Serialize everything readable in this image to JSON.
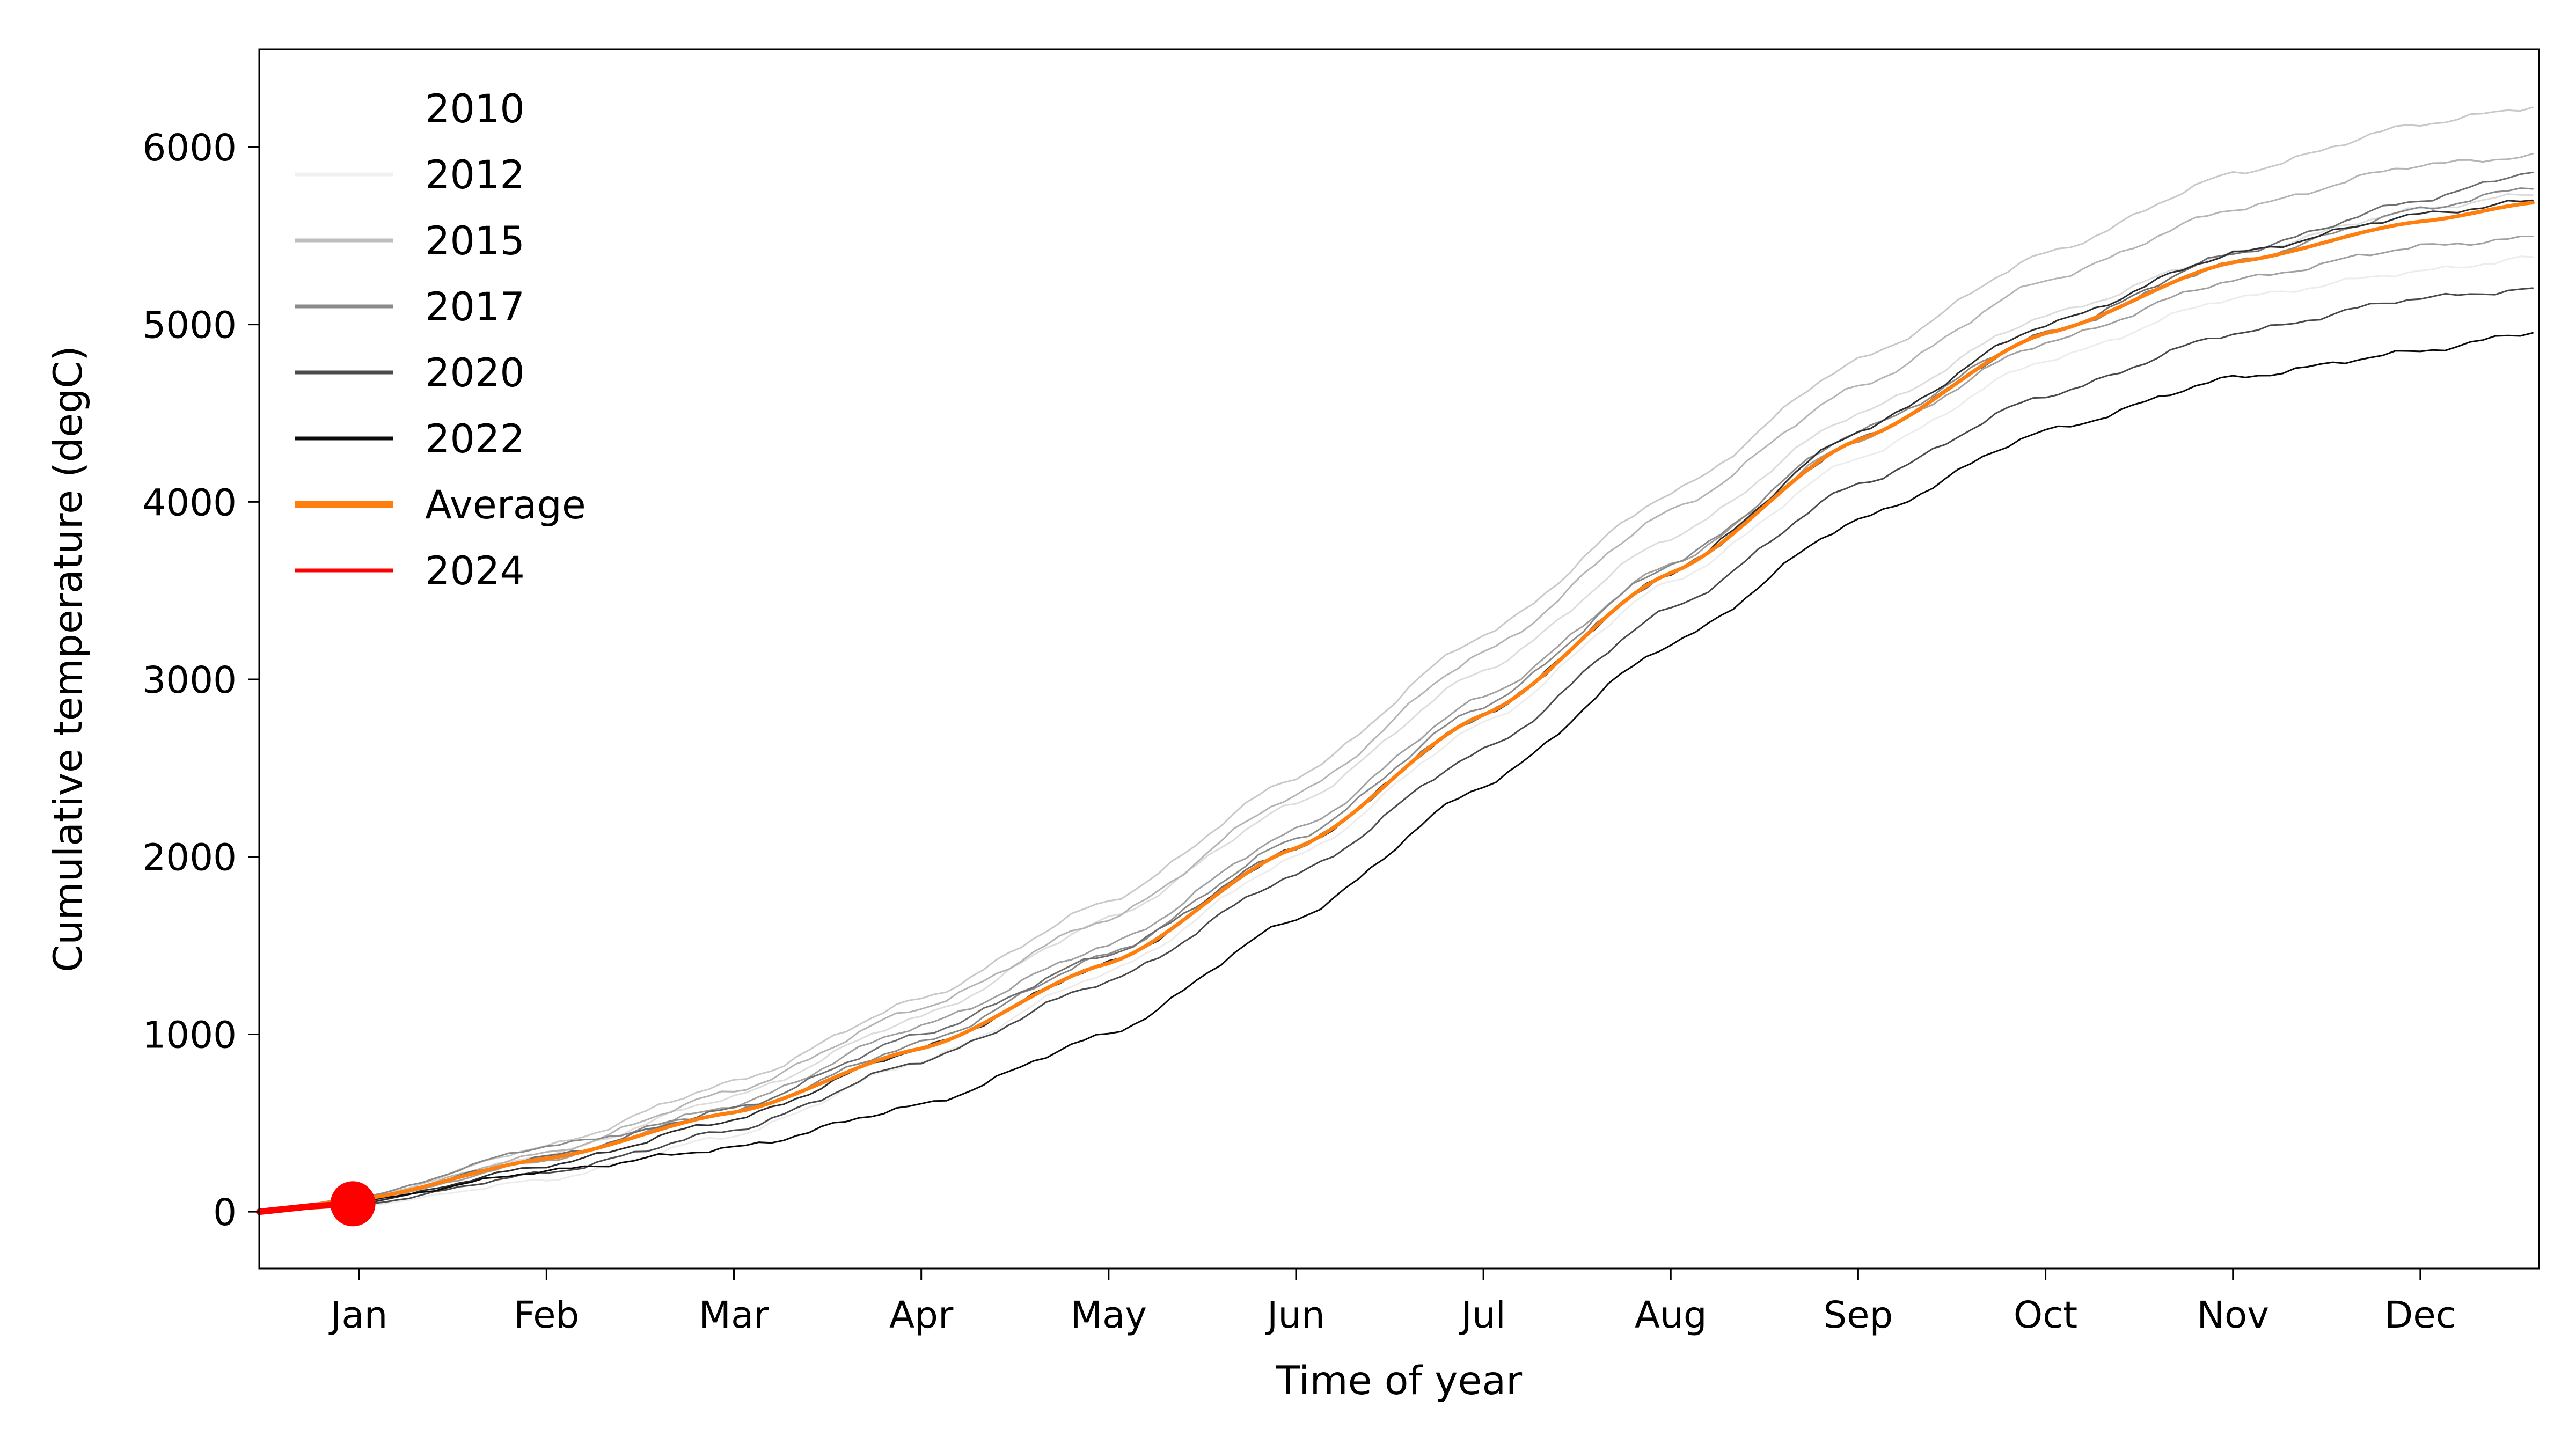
{
  "chart_data": {
    "type": "line",
    "title": "",
    "xlabel": "Time of year",
    "ylabel": "Cumulative temperature (degC)",
    "ylim": [
      -320,
      6550
    ],
    "xlim": [
      -16,
      349
    ],
    "yticks": [
      0,
      1000,
      2000,
      3000,
      4000,
      5000,
      6000
    ],
    "xticks": [
      {
        "label": "Jan",
        "x": 0
      },
      {
        "label": "Feb",
        "x": 30
      },
      {
        "label": "Mar",
        "x": 60
      },
      {
        "label": "Apr",
        "x": 90
      },
      {
        "label": "May",
        "x": 120
      },
      {
        "label": "Jun",
        "x": 150
      },
      {
        "label": "Jul",
        "x": 180
      },
      {
        "label": "Aug",
        "x": 210
      },
      {
        "label": "Sep",
        "x": 240
      },
      {
        "label": "Oct",
        "x": 270
      },
      {
        "label": "Nov",
        "x": 300
      },
      {
        "label": "Dec",
        "x": 330
      }
    ],
    "grid": false,
    "legend_position": "top-left",
    "x_unit": "days relative to 1 Jan",
    "legend": [
      {
        "name": "2010",
        "color": "#ffffff"
      },
      {
        "name": "2012",
        "color": "#f0f0f0"
      },
      {
        "name": "2015",
        "color": "#bdbdbd"
      },
      {
        "name": "2017",
        "color": "#8a8a8a"
      },
      {
        "name": "2020",
        "color": "#4a4a4a"
      },
      {
        "name": "2022",
        "color": "#0a0a0a"
      },
      {
        "name": "Average",
        "color": "#ff7f0e"
      },
      {
        "name": "2024",
        "color": "#ff0000"
      }
    ],
    "series": [
      {
        "name": "2010",
        "color": "#ffffff",
        "width": 3,
        "x": [
          -16,
          0,
          30,
          60,
          90,
          120,
          150,
          180,
          210,
          240,
          270,
          300,
          330,
          349
        ],
        "y": [
          0,
          55,
          250,
          520,
          950,
          1450,
          2150,
          2950,
          3750,
          4500,
          5150,
          5600,
          5870,
          5980
        ]
      },
      {
        "name": "2012",
        "color": "#ececec",
        "width": 3,
        "x": [
          -16,
          0,
          30,
          60,
          90,
          120,
          150,
          180,
          210,
          240,
          270,
          300,
          330,
          349
        ],
        "y": [
          0,
          35,
          180,
          430,
          850,
          1350,
          2000,
          2750,
          3550,
          4250,
          4800,
          5150,
          5300,
          5380
        ]
      },
      {
        "name": "",
        "color": "#dcdcdc",
        "width": 3,
        "x": [
          -16,
          0,
          30,
          60,
          90,
          120,
          150,
          180,
          210,
          240,
          270,
          300,
          330,
          349
        ],
        "y": [
          0,
          60,
          320,
          650,
          1100,
          1650,
          2300,
          3050,
          3800,
          4500,
          5050,
          5400,
          5650,
          5740
        ]
      },
      {
        "name": "2015",
        "color": "#c8c8c8",
        "width": 3,
        "x": [
          -16,
          0,
          30,
          60,
          90,
          120,
          150,
          180,
          210,
          240,
          270,
          300,
          330,
          349
        ],
        "y": [
          0,
          70,
          370,
          730,
          1200,
          1750,
          2450,
          3250,
          4050,
          4800,
          5400,
          5850,
          6130,
          6230
        ]
      },
      {
        "name": "",
        "color": "#b4b4b4",
        "width": 3,
        "x": [
          -16,
          0,
          30,
          60,
          90,
          120,
          150,
          180,
          210,
          240,
          270,
          300,
          330,
          349
        ],
        "y": [
          0,
          65,
          330,
          680,
          1150,
          1650,
          2350,
          3150,
          3950,
          4650,
          5250,
          5650,
          5900,
          5950
        ]
      },
      {
        "name": "",
        "color": "#a0a0a0",
        "width": 3,
        "x": [
          -16,
          0,
          30,
          60,
          90,
          120,
          150,
          180,
          210,
          240,
          270,
          300,
          330,
          349
        ],
        "y": [
          0,
          55,
          290,
          600,
          1050,
          1500,
          2150,
          2900,
          3650,
          4350,
          4900,
          5250,
          5440,
          5490
        ]
      },
      {
        "name": "2017",
        "color": "#8a8a8a",
        "width": 3,
        "x": [
          -16,
          0,
          30,
          60,
          90,
          120,
          150,
          180,
          210,
          240,
          270,
          300,
          330,
          349
        ],
        "y": [
          0,
          80,
          370,
          560,
          950,
          1450,
          2100,
          2850,
          3650,
          4400,
          4950,
          5350,
          5650,
          5780
        ]
      },
      {
        "name": "",
        "color": "#6e6e6e",
        "width": 3,
        "x": [
          -16,
          0,
          30,
          60,
          90,
          120,
          150,
          180,
          210,
          240,
          270,
          300,
          330,
          349
        ],
        "y": [
          0,
          70,
          310,
          580,
          1000,
          1450,
          2050,
          2800,
          3600,
          4350,
          4950,
          5400,
          5700,
          5870
        ]
      },
      {
        "name": "2020",
        "color": "#4a4a4a",
        "width": 3,
        "x": [
          -16,
          0,
          30,
          60,
          90,
          120,
          150,
          180,
          210,
          240,
          270,
          300,
          330,
          349
        ],
        "y": [
          0,
          40,
          220,
          460,
          850,
          1300,
          1900,
          2600,
          3400,
          4100,
          4600,
          4950,
          5150,
          5200
        ]
      },
      {
        "name": "",
        "color": "#2e2e2e",
        "width": 3,
        "x": [
          -16,
          0,
          30,
          60,
          90,
          120,
          150,
          180,
          210,
          240,
          270,
          300,
          330,
          349
        ],
        "y": [
          0,
          50,
          260,
          520,
          920,
          1400,
          2050,
          2800,
          3600,
          4400,
          5000,
          5400,
          5620,
          5700
        ]
      },
      {
        "name": "2022",
        "color": "#0a0a0a",
        "width": 3,
        "x": [
          -16,
          0,
          30,
          60,
          90,
          120,
          150,
          180,
          210,
          240,
          270,
          300,
          330,
          349
        ],
        "y": [
          0,
          60,
          230,
          360,
          600,
          1000,
          1650,
          2400,
          3200,
          3900,
          4400,
          4700,
          4850,
          4960
        ]
      },
      {
        "name": "Average",
        "color": "#ff7f0e",
        "width": 7,
        "x": [
          -16,
          0,
          30,
          60,
          90,
          120,
          150,
          180,
          210,
          240,
          270,
          300,
          330,
          349
        ],
        "y": [
          0,
          70,
          300,
          560,
          920,
          1400,
          2050,
          2800,
          3600,
          4350,
          4950,
          5350,
          5580,
          5690
        ]
      },
      {
        "name": "2024",
        "color": "#ff0000",
        "width": 12,
        "x": [
          -16,
          -8,
          -1
        ],
        "y": [
          0,
          30,
          45
        ],
        "marker": {
          "x": -1,
          "y": 45
        }
      }
    ]
  }
}
